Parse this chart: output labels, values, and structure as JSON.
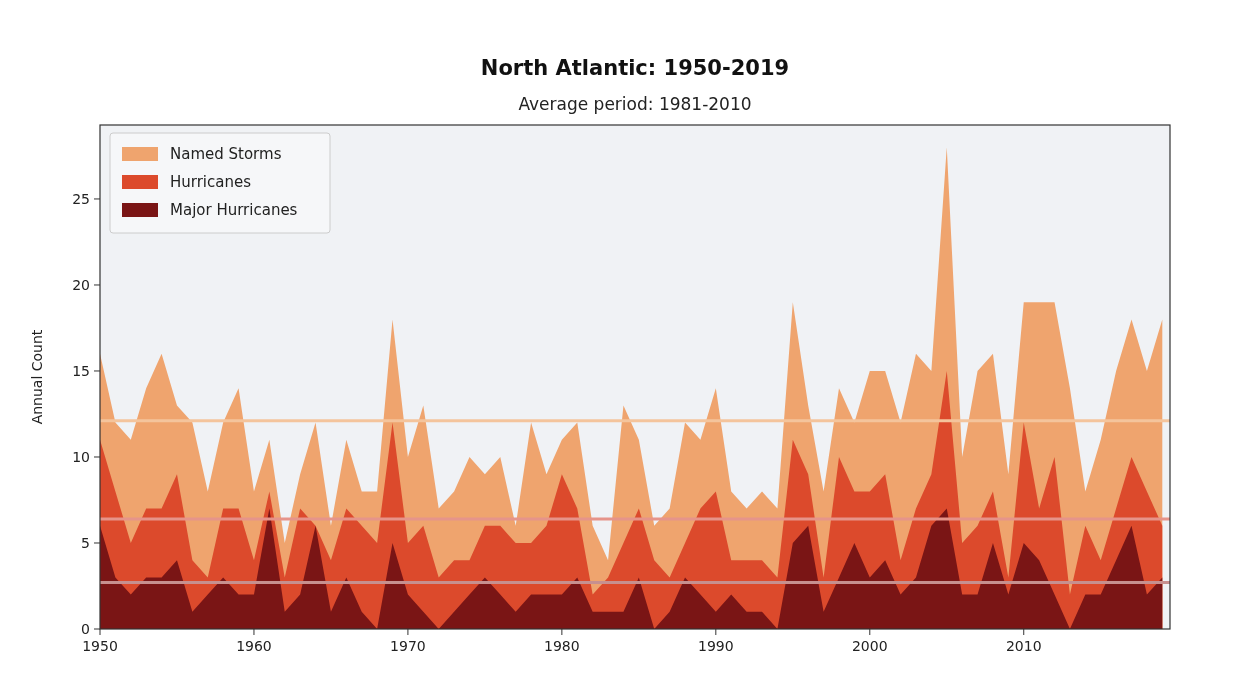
{
  "chart_data": {
    "type": "area",
    "title": "North Atlantic: 1950-2019",
    "subtitle": "Average period: 1981-2010",
    "ylabel": "Annual Count",
    "x": [
      1950,
      1951,
      1952,
      1953,
      1954,
      1955,
      1956,
      1957,
      1958,
      1959,
      1960,
      1961,
      1962,
      1963,
      1964,
      1965,
      1966,
      1967,
      1968,
      1969,
      1970,
      1971,
      1972,
      1973,
      1974,
      1975,
      1976,
      1977,
      1978,
      1979,
      1980,
      1981,
      1982,
      1983,
      1984,
      1985,
      1986,
      1987,
      1988,
      1989,
      1990,
      1991,
      1992,
      1993,
      1994,
      1995,
      1996,
      1997,
      1998,
      1999,
      2000,
      2001,
      2002,
      2003,
      2004,
      2005,
      2006,
      2007,
      2008,
      2009,
      2010,
      2011,
      2012,
      2013,
      2014,
      2015,
      2016,
      2017,
      2018,
      2019
    ],
    "series": [
      {
        "name": "Named Storms",
        "color": "#efa46e",
        "values": [
          16,
          12,
          11,
          14,
          16,
          13,
          12,
          8,
          12,
          14,
          8,
          11,
          5,
          9,
          12,
          6,
          11,
          8,
          8,
          18,
          10,
          13,
          7,
          8,
          10,
          9,
          10,
          6,
          12,
          9,
          11,
          12,
          6,
          4,
          13,
          11,
          6,
          7,
          12,
          11,
          14,
          8,
          7,
          8,
          7,
          19,
          13,
          8,
          14,
          12,
          15,
          15,
          12,
          16,
          15,
          28,
          10,
          15,
          16,
          9,
          19,
          19,
          19,
          14,
          8,
          11,
          15,
          18,
          15,
          18
        ]
      },
      {
        "name": "Hurricanes",
        "color": "#dc4a2c",
        "values": [
          11,
          8,
          5,
          7,
          7,
          9,
          4,
          3,
          7,
          7,
          4,
          8,
          3,
          7,
          6,
          4,
          7,
          6,
          5,
          12,
          5,
          6,
          3,
          4,
          4,
          6,
          6,
          5,
          5,
          6,
          9,
          7,
          2,
          3,
          5,
          7,
          4,
          3,
          5,
          7,
          8,
          4,
          4,
          4,
          3,
          11,
          9,
          3,
          10,
          8,
          8,
          9,
          4,
          7,
          9,
          15,
          5,
          6,
          8,
          3,
          12,
          7,
          10,
          2,
          6,
          4,
          7,
          10,
          8,
          6
        ]
      },
      {
        "name": "Major Hurricanes",
        "color": "#7a1515",
        "values": [
          6,
          3,
          2,
          3,
          3,
          4,
          1,
          2,
          3,
          2,
          2,
          7,
          1,
          2,
          6,
          1,
          3,
          1,
          0,
          5,
          2,
          1,
          0,
          1,
          2,
          3,
          2,
          1,
          2,
          2,
          2,
          3,
          1,
          1,
          1,
          3,
          0,
          1,
          3,
          2,
          1,
          2,
          1,
          1,
          0,
          5,
          6,
          1,
          3,
          5,
          3,
          4,
          2,
          3,
          6,
          7,
          2,
          2,
          5,
          2,
          5,
          4,
          2,
          0,
          2,
          2,
          4,
          6,
          2,
          3
        ]
      }
    ],
    "ref_lines": [
      {
        "axis": "y",
        "value": 12.1,
        "color": "#f4c49c"
      },
      {
        "axis": "y",
        "value": 6.4,
        "color": "#e6948a"
      },
      {
        "axis": "y",
        "value": 2.7,
        "color": "#c7908f"
      }
    ],
    "xlim": [
      1950,
      2019.5
    ],
    "ylim": [
      0,
      29.3
    ],
    "xticks": [
      1950,
      1960,
      1970,
      1980,
      1990,
      2000,
      2010
    ],
    "yticks": [
      0,
      5,
      10,
      15,
      20,
      25
    ],
    "legend": "top left",
    "grid": false
  }
}
